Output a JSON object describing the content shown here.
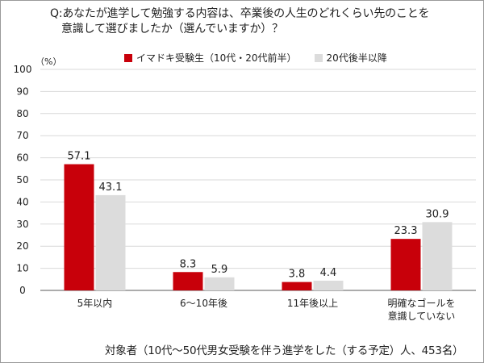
{
  "question": {
    "line1": "Q:あなたが進学して勉強する内容は、卒業後の人生のどれくらい先のことを",
    "line2": "意識して選びましたか（選んでいますか）？"
  },
  "unit": "（%）",
  "footer": "対象者（10代〜50代男女受験を伴う進学をした（する予定）人、453名）",
  "colors": {
    "series1": "#c8000a",
    "series2": "#dcdcdc",
    "grid": "#d9d9d9",
    "axis": "#595959"
  },
  "chart_data": {
    "type": "bar",
    "categories": [
      [
        "5年以内"
      ],
      [
        "6〜10年後"
      ],
      [
        "11年後以上"
      ],
      [
        "明確なゴールを",
        "意識していない"
      ]
    ],
    "series": [
      {
        "name": "イマドキ受験生（10代・20代前半）",
        "values": [
          57.1,
          8.3,
          3.8,
          23.3
        ]
      },
      {
        "name": "20代後半以降",
        "values": [
          43.1,
          5.9,
          4.4,
          30.9
        ]
      }
    ],
    "value_labels": [
      [
        "57.1",
        "8.3",
        "3.8",
        "23.3"
      ],
      [
        "43.1",
        "5.9",
        "4.4",
        "30.9"
      ]
    ],
    "ylim": [
      0,
      100
    ],
    "yticks": [
      0,
      10,
      20,
      30,
      40,
      50,
      60,
      70,
      80,
      90,
      100
    ],
    "grid": true,
    "legend_position": "top"
  }
}
